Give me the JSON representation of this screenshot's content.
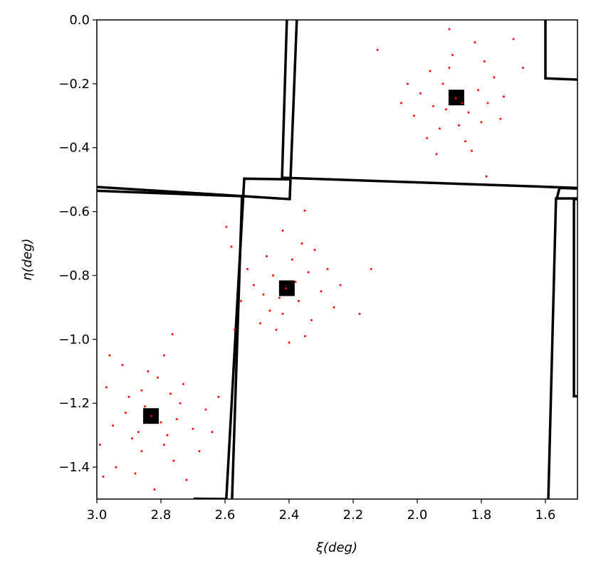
{
  "chart_data": {
    "type": "scatter",
    "xlabel": "ξ(deg)",
    "ylabel": "η(deg)",
    "xlim": [
      3.0,
      1.5
    ],
    "ylim": [
      -1.5,
      0.0
    ],
    "xticks": [
      {
        "value": 3,
        "label": "3.0"
      },
      2.8,
      2.6,
      2.4,
      2.2,
      {
        "value": 2,
        "label": "2.0"
      },
      1.8,
      1.6
    ],
    "yticks": [
      {
        "value": 0,
        "label": "0.0"
      },
      {
        "value": -0.2,
        "label": "−0.2"
      },
      {
        "value": -0.4,
        "label": "−0.4"
      },
      {
        "value": -0.6,
        "label": "−0.6"
      },
      {
        "value": -0.8,
        "label": "−0.8"
      },
      {
        "value": -1,
        "label": "−1.0"
      },
      {
        "value": -1.2,
        "label": "−1.2"
      },
      {
        "value": -1.4,
        "label": "−1.4"
      }
    ],
    "series": [
      {
        "color": "#000000",
        "marker": "square",
        "x": [
          2.831,
          2.407,
          1.878
        ],
        "y": [
          -1.24,
          -0.84,
          -0.243
        ]
      },
      {
        "color": "#ff0000",
        "marker": "dot",
        "x": [
          2.83,
          2.9,
          2.78,
          2.95,
          2.74,
          2.86,
          2.81,
          2.7,
          2.97,
          2.88,
          2.76,
          2.92,
          2.79,
          2.66,
          2.99,
          2.85,
          2.8,
          2.87,
          2.73,
          2.94,
          2.68,
          2.82,
          2.91,
          2.77,
          2.84,
          2.64,
          2.96,
          2.72,
          2.89,
          2.75,
          2.764,
          2.62,
          2.98,
          2.86,
          2.79,
          2.41,
          2.45,
          2.37,
          2.48,
          2.34,
          2.42,
          2.39,
          2.51,
          2.3,
          2.44,
          2.36,
          2.47,
          2.33,
          2.55,
          2.28,
          2.4,
          2.43,
          2.38,
          2.46,
          2.32,
          2.53,
          2.26,
          2.49,
          2.35,
          2.596,
          2.351,
          2.144,
          2.18,
          2.57,
          2.42,
          2.24,
          2.58,
          1.88,
          1.92,
          1.84,
          1.95,
          1.81,
          1.87,
          1.9,
          1.78,
          1.99,
          1.85,
          1.93,
          1.76,
          2.01,
          1.89,
          1.8,
          1.96,
          1.83,
          1.73,
          2.03,
          1.86,
          1.91,
          1.79,
          1.97,
          1.74,
          1.784,
          1.9,
          2.124,
          1.7,
          1.67,
          2.05,
          1.94,
          1.82
        ],
        "y": [
          -1.24,
          -1.18,
          -1.3,
          -1.27,
          -1.2,
          -1.35,
          -1.12,
          -1.28,
          -1.15,
          -1.42,
          -1.38,
          -1.08,
          -1.05,
          -1.22,
          -1.33,
          -1.21,
          -1.26,
          -1.29,
          -1.14,
          -1.4,
          -1.35,
          -1.47,
          -1.23,
          -1.17,
          -1.1,
          -1.29,
          -1.05,
          -1.44,
          -1.31,
          -1.25,
          -0.984,
          -1.18,
          -1.43,
          -1.16,
          -1.33,
          -0.84,
          -0.8,
          -0.88,
          -0.86,
          -0.79,
          -0.92,
          -0.75,
          -0.83,
          -0.85,
          -0.97,
          -0.7,
          -0.74,
          -0.94,
          -0.88,
          -0.78,
          -1.01,
          -0.87,
          -0.82,
          -0.91,
          -0.72,
          -0.78,
          -0.9,
          -0.95,
          -0.99,
          -0.648,
          -0.597,
          -0.78,
          -0.92,
          -0.97,
          -0.66,
          -0.83,
          -0.71,
          -0.245,
          -0.2,
          -0.29,
          -0.27,
          -0.22,
          -0.33,
          -0.15,
          -0.26,
          -0.23,
          -0.38,
          -0.34,
          -0.18,
          -0.3,
          -0.11,
          -0.32,
          -0.16,
          -0.41,
          -0.24,
          -0.2,
          -0.26,
          -0.28,
          -0.13,
          -0.37,
          -0.31,
          -0.49,
          -0.029,
          -0.094,
          -0.06,
          -0.15,
          -0.26,
          -0.42,
          -0.07
        ]
      }
    ],
    "polygons": [
      {
        "color": "#000000",
        "x": [
          2.407,
          2.422,
          1.5
        ],
        "y": [
          0,
          -0.494,
          -0.526
        ]
      },
      {
        "color": "#000000",
        "x": [
          2.376,
          2.398,
          3.0
        ],
        "y": [
          0,
          -0.561,
          -0.523
        ]
      },
      {
        "color": "#000000",
        "x": [
          2.398,
          2.54,
          2.596
        ],
        "y": [
          -0.499,
          -0.497,
          -1.5
        ]
      },
      {
        "color": "#000000",
        "x": [
          3.0,
          2.547,
          2.578
        ],
        "y": [
          -0.535,
          -0.552,
          -1.5
        ]
      },
      {
        "color": "#000000",
        "x": [
          1.6,
          1.6,
          1.5
        ],
        "y": [
          0,
          -0.183,
          -0.187
        ]
      },
      {
        "color": "#000000",
        "x": [
          1.5,
          1.556,
          1.564
        ],
        "y": [
          -0.528,
          -0.526,
          -0.557
        ]
      },
      {
        "color": "#000000",
        "x": [
          1.5,
          1.567,
          1.591
        ],
        "y": [
          -0.559,
          -0.559,
          -1.5
        ]
      },
      {
        "color": "#000000",
        "x": [
          1.5,
          1.511,
          1.511,
          1.5
        ],
        "y": [
          -0.561,
          -0.561,
          -1.178,
          -1.178
        ]
      },
      {
        "color": "#000000",
        "x": [
          2.698,
          2.596
        ],
        "y": [
          -1.499,
          -1.5
        ]
      }
    ]
  }
}
